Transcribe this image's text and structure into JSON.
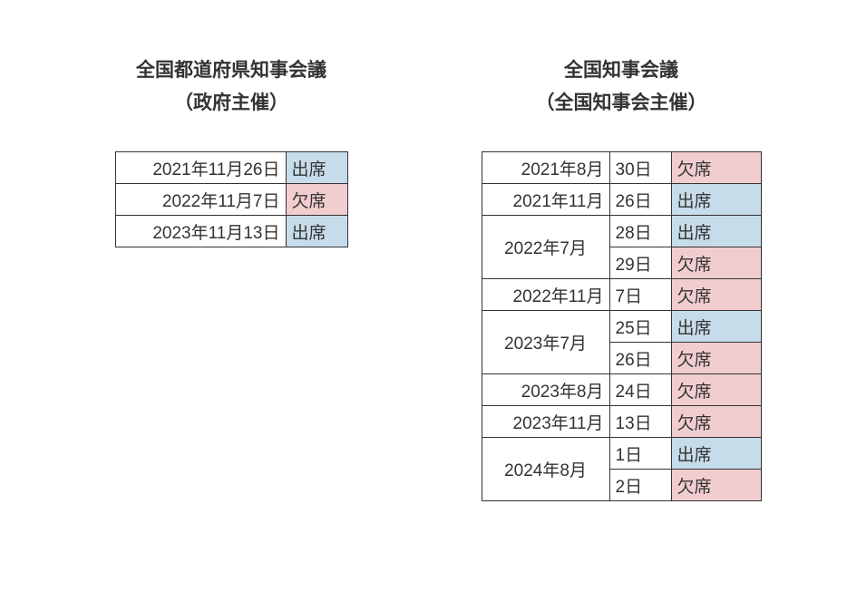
{
  "colors": {
    "present": "#c7dcea",
    "absent": "#f1cdd0",
    "border": "#333333",
    "background": "#ffffff",
    "text": "#333333"
  },
  "left": {
    "title_line1": "全国都道府県知事会議",
    "title_line2": "（政府主催）",
    "columns": [
      "date",
      "status"
    ],
    "rows": [
      {
        "date": "2021年11月26日",
        "status": "出席",
        "status_type": "present"
      },
      {
        "date": "2022年11月7日",
        "status": "欠席",
        "status_type": "absent"
      },
      {
        "date": "2023年11月13日",
        "status": "出席",
        "status_type": "present"
      }
    ]
  },
  "right": {
    "title_line1": "全国知事会議",
    "title_line2": "（全国知事会主催）",
    "columns": [
      "month",
      "day",
      "status"
    ],
    "rows": [
      {
        "month": "2021年8月",
        "day": "30日",
        "status": "欠席",
        "status_type": "absent",
        "rowspan": 1
      },
      {
        "month": "2021年11月",
        "day": "26日",
        "status": "出席",
        "status_type": "present",
        "rowspan": 1
      },
      {
        "month": "2022年7月",
        "day": "28日",
        "status": "出席",
        "status_type": "present",
        "rowspan": 2
      },
      {
        "month": "",
        "day": "29日",
        "status": "欠席",
        "status_type": "absent",
        "rowspan": 0
      },
      {
        "month": "2022年11月",
        "day": "7日",
        "status": "欠席",
        "status_type": "absent",
        "rowspan": 1
      },
      {
        "month": "2023年7月",
        "day": "25日",
        "status": "出席",
        "status_type": "present",
        "rowspan": 2
      },
      {
        "month": "",
        "day": "26日",
        "status": "欠席",
        "status_type": "absent",
        "rowspan": 0
      },
      {
        "month": "2023年8月",
        "day": "24日",
        "status": "欠席",
        "status_type": "absent",
        "rowspan": 1
      },
      {
        "month": "2023年11月",
        "day": "13日",
        "status": "欠席",
        "status_type": "absent",
        "rowspan": 1
      },
      {
        "month": "2024年8月",
        "day": "1日",
        "status": "出席",
        "status_type": "present",
        "rowspan": 2
      },
      {
        "month": "",
        "day": "2日",
        "status": "欠席",
        "status_type": "absent",
        "rowspan": 0
      }
    ]
  }
}
